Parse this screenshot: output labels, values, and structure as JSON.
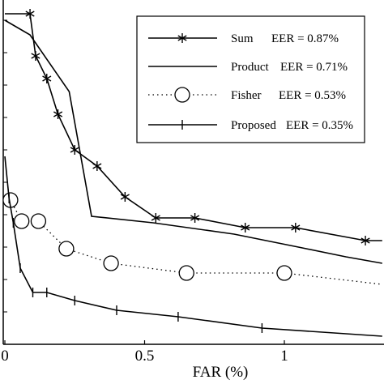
{
  "chart_data": {
    "type": "line",
    "title": "",
    "xlabel": "FAR (%)",
    "ylabel": "",
    "xlim": [
      0,
      1.35
    ],
    "ylim": [
      0,
      10
    ],
    "x_ticks": [
      0,
      0.5,
      1
    ],
    "x_tick_labels": [
      "0",
      "0.5",
      "1"
    ],
    "grid": false,
    "legend_position": "top-right",
    "series": [
      {
        "name": "Sum",
        "eer_label": "EER = 0.87%",
        "line_style": "solid",
        "marker": "asterisk",
        "color": "#000000",
        "x": [
          0.0,
          0.09,
          0.11,
          0.15,
          0.19,
          0.25,
          0.33,
          0.43,
          0.54,
          0.68,
          0.86,
          1.04,
          1.29,
          1.35
        ],
        "y": [
          10.2,
          10.2,
          8.9,
          8.2,
          7.1,
          6.0,
          5.5,
          4.55,
          3.9,
          3.9,
          3.6,
          3.6,
          3.2,
          3.2
        ],
        "marker_x": [
          0.09,
          0.11,
          0.15,
          0.19,
          0.25,
          0.33,
          0.43,
          0.54,
          0.68,
          0.86,
          1.04,
          1.29
        ],
        "marker_y": [
          10.2,
          8.9,
          8.2,
          7.1,
          6.0,
          5.5,
          4.55,
          3.9,
          3.9,
          3.6,
          3.6,
          3.2
        ]
      },
      {
        "name": "Product",
        "eer_label": "EER = 0.71%",
        "line_style": "solid",
        "marker": "none",
        "color": "#000000",
        "x": [
          0.0,
          0.0,
          0.09,
          0.23,
          0.31,
          0.53,
          0.82,
          1.05,
          1.22,
          1.35
        ],
        "y": [
          10.0,
          10.0,
          9.55,
          7.8,
          3.95,
          3.75,
          3.4,
          3.0,
          2.7,
          2.5
        ]
      },
      {
        "name": "Fisher",
        "eer_label": "EER = 0.53%",
        "line_style": "dotted",
        "marker": "circle",
        "color": "#000000",
        "x": [
          0.0,
          0.02,
          0.06,
          0.12,
          0.22,
          0.38,
          0.65,
          1.0,
          1.35
        ],
        "y": [
          4.45,
          4.45,
          3.8,
          3.8,
          2.95,
          2.5,
          2.2,
          2.2,
          1.85
        ],
        "marker_x": [
          0.02,
          0.06,
          0.12,
          0.22,
          0.38,
          0.65,
          1.0
        ],
        "marker_y": [
          4.45,
          3.8,
          3.8,
          2.95,
          2.5,
          2.2,
          2.2
        ]
      },
      {
        "name": "Proposed",
        "eer_label": "EER = 0.35%",
        "line_style": "solid",
        "marker": "plus",
        "color": "#000000",
        "x": [
          0.0,
          0.015,
          0.03,
          0.055,
          0.1,
          0.15,
          0.25,
          0.4,
          0.62,
          0.92,
          1.35
        ],
        "y": [
          5.8,
          4.5,
          3.75,
          2.35,
          1.6,
          1.6,
          1.35,
          1.05,
          0.85,
          0.5,
          0.25
        ],
        "marker_x": [
          0.015,
          0.03,
          0.055,
          0.1,
          0.15,
          0.25,
          0.4,
          0.62,
          0.92
        ],
        "marker_y": [
          4.5,
          3.75,
          2.35,
          1.6,
          1.6,
          1.35,
          1.05,
          0.85,
          0.5
        ]
      }
    ]
  },
  "legend": {
    "entries": [
      {
        "name": "Sum",
        "eer": "EER = 0.87%"
      },
      {
        "name": "Product",
        "eer": "EER = 0.71%"
      },
      {
        "name": "Fisher",
        "eer": "EER = 0.53%"
      },
      {
        "name": "Proposed",
        "eer": "EER = 0.35%"
      }
    ]
  }
}
